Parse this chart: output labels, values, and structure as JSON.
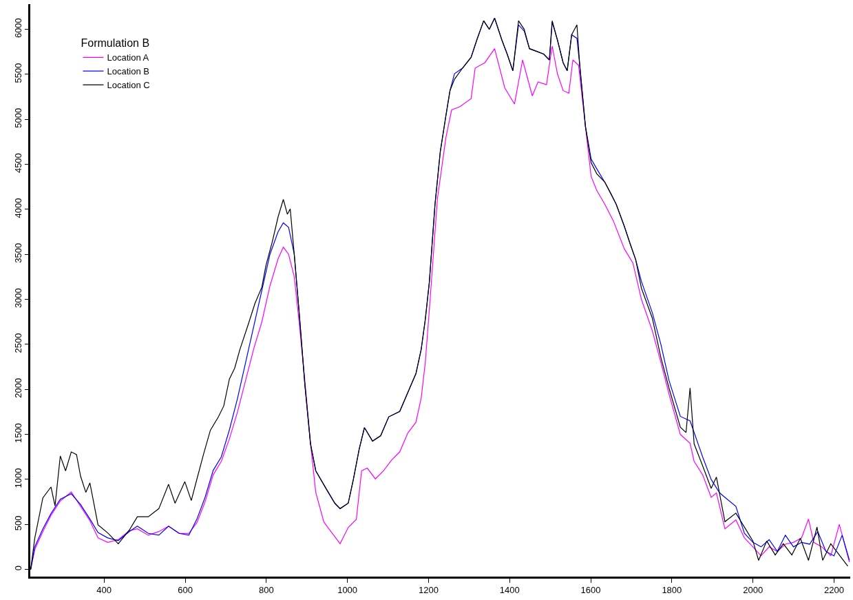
{
  "chart_data": {
    "type": "line",
    "legend_title": "Formulation B",
    "legend": "top left",
    "xlim": [
      218,
      2240
    ],
    "ylim": [
      -80,
      6280
    ],
    "xticks": [
      400,
      600,
      800,
      1000,
      1200,
      1400,
      1600,
      1800,
      2000,
      2200
    ],
    "yticks": [
      0,
      500,
      1000,
      1500,
      2000,
      2500,
      3000,
      3500,
      4000,
      4500,
      5000,
      5500,
      6000
    ],
    "series": [
      {
        "name": "Location A",
        "color": "#ff00ff",
        "x": [
          219,
          229,
          249,
          269,
          292,
          319,
          342,
          365,
          385,
          409,
          435,
          462,
          482,
          509,
          535,
          559,
          585,
          609,
          629,
          649,
          669,
          689,
          709,
          729,
          749,
          769,
          789,
          809,
          829,
          842,
          855,
          869,
          882,
          895,
          909,
          922,
          942,
          962,
          982,
          992,
          1002,
          1022,
          1035,
          1049,
          1069,
          1089,
          1109,
          1129,
          1149,
          1169,
          1182,
          1192,
          1202,
          1222,
          1243,
          1257,
          1277,
          1305,
          1315,
          1339,
          1363,
          1388,
          1412,
          1432,
          1456,
          1470,
          1491,
          1505,
          1518,
          1532,
          1546,
          1556,
          1570,
          1580,
          1601,
          1615,
          1635,
          1656,
          1683,
          1704,
          1725,
          1752,
          1773,
          1793,
          1821,
          1845,
          1855,
          1876,
          1897,
          1910,
          1931,
          1958,
          1979,
          2000,
          2020,
          2040,
          2060,
          2080,
          2100,
          2120,
          2137,
          2150,
          2170,
          2192,
          2213,
          2225,
          2238
        ],
        "values": [
          0,
          220,
          420,
          600,
          760,
          860,
          700,
          540,
          350,
          300,
          330,
          430,
          450,
          380,
          420,
          480,
          400,
          400,
          520,
          750,
          1050,
          1200,
          1450,
          1750,
          2100,
          2450,
          2750,
          3150,
          3450,
          3580,
          3500,
          3250,
          2700,
          2100,
          1400,
          855,
          525,
          405,
          285,
          375,
          465,
          555,
          1095,
          1125,
          1005,
          1095,
          1215,
          1305,
          1515,
          1635,
          1905,
          2295,
          2880,
          4120,
          4800,
          5105,
          5140,
          5230,
          5570,
          5630,
          5785,
          5350,
          5170,
          5660,
          5260,
          5415,
          5385,
          5815,
          5505,
          5320,
          5290,
          5660,
          5600,
          5200,
          4365,
          4210,
          4055,
          3870,
          3560,
          3405,
          3000,
          2650,
          2300,
          1950,
          1500,
          1400,
          1200,
          1050,
          800,
          850,
          450,
          550,
          350,
          250,
          150,
          250,
          200,
          280,
          300,
          350,
          560,
          300,
          250,
          150,
          500,
          300,
          80
        ]
      },
      {
        "name": "Location B",
        "color": "#0000ff",
        "x": [
          219,
          229,
          249,
          269,
          292,
          319,
          342,
          365,
          385,
          409,
          435,
          462,
          482,
          509,
          535,
          559,
          585,
          609,
          629,
          649,
          669,
          689,
          709,
          729,
          749,
          769,
          789,
          809,
          829,
          842,
          855,
          869,
          882,
          895,
          909,
          922,
          949,
          969,
          982,
          1002,
          1015,
          1029,
          1042,
          1062,
          1082,
          1102,
          1129,
          1149,
          1169,
          1182,
          1192,
          1202,
          1216,
          1229,
          1243,
          1253,
          1264,
          1284,
          1305,
          1319,
          1336,
          1350,
          1363,
          1381,
          1394,
          1408,
          1422,
          1436,
          1449,
          1467,
          1484,
          1498,
          1505,
          1518,
          1532,
          1542,
          1553,
          1566,
          1573,
          1587,
          1601,
          1615,
          1635,
          1649,
          1663,
          1683,
          1697,
          1711,
          1725,
          1752,
          1773,
          1793,
          1821,
          1845,
          1876,
          1897,
          1918,
          1931,
          1958,
          1979,
          2000,
          2020,
          2040,
          2060,
          2080,
          2100,
          2120,
          2140,
          2160,
          2180,
          2200,
          2220,
          2238
        ],
        "values": [
          0,
          250,
          450,
          620,
          780,
          840,
          720,
          560,
          410,
          350,
          320,
          420,
          480,
          400,
          380,
          480,
          400,
          380,
          560,
          800,
          1100,
          1250,
          1550,
          1900,
          2300,
          2700,
          3100,
          3500,
          3750,
          3850,
          3800,
          3500,
          2800,
          2055,
          1395,
          1095,
          885,
          735,
          675,
          735,
          1005,
          1335,
          1575,
          1425,
          1485,
          1695,
          1755,
          1965,
          2175,
          2445,
          2775,
          3190,
          4055,
          4640,
          5044,
          5320,
          5507,
          5570,
          5690,
          5880,
          6095,
          6000,
          6125,
          5880,
          5725,
          5540,
          6050,
          5980,
          5785,
          5755,
          5725,
          5660,
          6080,
          5880,
          5630,
          5540,
          5940,
          5900,
          5600,
          4920,
          4560,
          4450,
          4300,
          4180,
          4055,
          3810,
          3620,
          3440,
          3200,
          2850,
          2500,
          2100,
          1700,
          1650,
          1250,
          1000,
          850,
          800,
          700,
          400,
          300,
          250,
          330,
          200,
          380,
          250,
          300,
          280,
          420,
          200,
          150,
          380,
          100
        ]
      },
      {
        "name": "Location C",
        "color": "#000000",
        "x": [
          219,
          229,
          249,
          269,
          279,
          292,
          305,
          319,
          332,
          342,
          355,
          365,
          385,
          409,
          435,
          462,
          482,
          509,
          535,
          559,
          575,
          599,
          615,
          629,
          645,
          662,
          682,
          695,
          709,
          722,
          735,
          755,
          772,
          789,
          799,
          815,
          829,
          842,
          852,
          859,
          869,
          882,
          895,
          909,
          922,
          949,
          969,
          982,
          1002,
          1015,
          1029,
          1042,
          1062,
          1082,
          1102,
          1129,
          1149,
          1169,
          1182,
          1192,
          1202,
          1216,
          1229,
          1243,
          1253,
          1264,
          1284,
          1305,
          1319,
          1336,
          1350,
          1363,
          1381,
          1394,
          1408,
          1422,
          1436,
          1449,
          1467,
          1484,
          1498,
          1505,
          1518,
          1532,
          1542,
          1553,
          1566,
          1573,
          1587,
          1601,
          1615,
          1635,
          1649,
          1663,
          1683,
          1697,
          1711,
          1725,
          1752,
          1773,
          1793,
          1821,
          1835,
          1845,
          1855,
          1876,
          1897,
          1910,
          1931,
          1958,
          1979,
          2000,
          2014,
          2034,
          2055,
          2075,
          2096,
          2117,
          2137,
          2158,
          2172,
          2192,
          2213,
          2234
        ],
        "values": [
          0,
          345,
          795,
          915,
          705,
          1260,
          1095,
          1305,
          1275,
          1035,
          855,
          960,
          495,
          405,
          285,
          435,
          585,
          585,
          675,
          945,
          735,
          975,
          765,
          1005,
          1275,
          1545,
          1695,
          1815,
          2115,
          2235,
          2445,
          2715,
          2955,
          3135,
          3375,
          3645,
          3915,
          4110,
          3945,
          4005,
          3495,
          2805,
          2055,
          1395,
          1095,
          885,
          735,
          675,
          735,
          1005,
          1335,
          1575,
          1425,
          1485,
          1695,
          1755,
          1965,
          2175,
          2445,
          2775,
          3190,
          4055,
          4640,
          5044,
          5320,
          5445,
          5570,
          5690,
          5880,
          6095,
          6000,
          6125,
          5880,
          5725,
          5540,
          6095,
          6000,
          5785,
          5755,
          5725,
          5660,
          6095,
          5880,
          5630,
          5540,
          5940,
          6050,
          5600,
          4920,
          4520,
          4395,
          4300,
          4180,
          4055,
          3810,
          3620,
          3440,
          3125,
          2790,
          2355,
          2015,
          1580,
          1520,
          2015,
          1395,
          1150,
          900,
          1025,
          530,
          625,
          470,
          315,
          100,
          315,
          160,
          285,
          160,
          345,
          100,
          470,
          100,
          285,
          160,
          35
        ]
      }
    ]
  }
}
